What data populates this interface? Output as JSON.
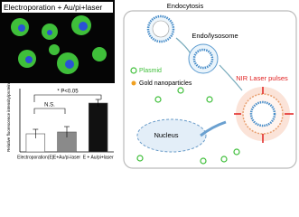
{
  "micrograph": {
    "label": "Electroporation + Au/pi+laser"
  },
  "chart_data": {
    "type": "bar",
    "ylabel": "Relative fluorescence intensity/protein",
    "categories": [
      "Electroporation(E)",
      "E+Au/pi-laser",
      "E + Au/pi+laser"
    ],
    "values": [
      1.0,
      1.1,
      2.7
    ],
    "errors": [
      0.25,
      0.3,
      0.2
    ],
    "colors": [
      "#ffffff",
      "#8a8a8a",
      "#111111"
    ],
    "ylim": [
      0,
      3.5
    ],
    "annotations": [
      "* P<0.05",
      "N.S."
    ]
  },
  "diagram": {
    "endocytosis": "Endocytosis",
    "endolysosome": "Endo/lysosome",
    "laser": "NIR Laser pulses",
    "plasmid": "Plasmid",
    "gold": "Gold nanoparticles",
    "nucleus": "Nucleus"
  }
}
